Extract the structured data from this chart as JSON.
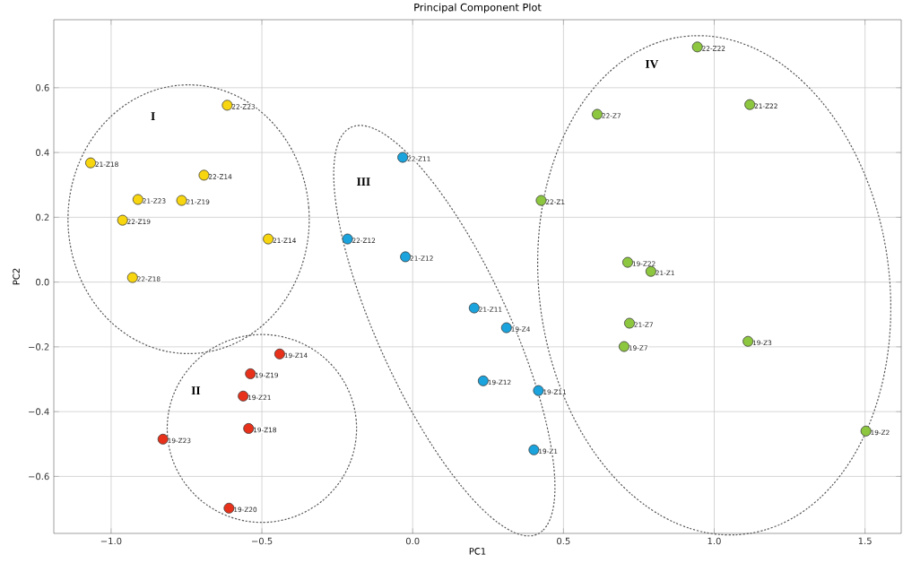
{
  "chart_data": {
    "type": "scatter",
    "title": "Principal Component Plot",
    "xlabel": "PC1",
    "ylabel": "PC2",
    "xlim": [
      -1.19,
      1.62
    ],
    "ylim": [
      -0.776,
      0.81
    ],
    "xticks": [
      {
        "value": -1.0,
        "label": "−1.0"
      },
      {
        "value": -0.5,
        "label": "−0.5"
      },
      {
        "value": 0.0,
        "label": "0.0"
      },
      {
        "value": 0.5,
        "label": "0.5"
      },
      {
        "value": 1.0,
        "label": "1.0"
      },
      {
        "value": 1.5,
        "label": "1.5"
      }
    ],
    "yticks": [
      {
        "value": -0.6,
        "label": "−0.6"
      },
      {
        "value": -0.4,
        "label": "−0.4"
      },
      {
        "value": -0.2,
        "label": "−0.2"
      },
      {
        "value": 0.0,
        "label": "0.0"
      },
      {
        "value": 0.2,
        "label": "0.2"
      },
      {
        "value": 0.4,
        "label": "0.4"
      },
      {
        "value": 0.6,
        "label": "0.6"
      }
    ],
    "grid": true,
    "marker": "circle",
    "series": [
      {
        "color": "#f7d50f",
        "x": [
          -0.615,
          -1.068,
          -0.692,
          -0.911,
          -0.766,
          -0.962,
          -0.479,
          -0.929
        ],
        "values": [
          0.546,
          0.368,
          0.33,
          0.255,
          0.252,
          0.191,
          0.133,
          0.014
        ]
      },
      {
        "color": "#e8311a",
        "x": [
          -0.441,
          -0.538,
          -0.562,
          -0.544,
          -0.828,
          -0.609
        ],
        "values": [
          -0.222,
          -0.283,
          -0.352,
          -0.452,
          -0.485,
          -0.698
        ]
      },
      {
        "color": "#1aa3dc",
        "x": [
          -0.033,
          -0.216,
          -0.024,
          0.204,
          0.311,
          0.234,
          0.417,
          0.402
        ],
        "values": [
          0.385,
          0.133,
          0.078,
          -0.08,
          -0.141,
          -0.305,
          -0.335,
          -0.518
        ]
      },
      {
        "color": "#8dc63f",
        "x": [
          0.944,
          1.118,
          0.612,
          0.426,
          0.713,
          0.79,
          0.719,
          0.701,
          1.112,
          1.503
        ],
        "values": [
          0.726,
          0.548,
          0.518,
          0.252,
          0.061,
          0.033,
          -0.127,
          -0.199,
          -0.183,
          -0.46
        ]
      }
    ],
    "annotations": [
      {
        "text": "22-Z23",
        "x": -0.615,
        "y": 0.546
      },
      {
        "text": "21-Z18",
        "x": -1.068,
        "y": 0.368
      },
      {
        "text": "22-Z14",
        "x": -0.692,
        "y": 0.33
      },
      {
        "text": "21-Z23",
        "x": -0.911,
        "y": 0.255
      },
      {
        "text": "21-Z19",
        "x": -0.766,
        "y": 0.252
      },
      {
        "text": "22-Z19",
        "x": -0.962,
        "y": 0.191
      },
      {
        "text": "21-Z14",
        "x": -0.479,
        "y": 0.133
      },
      {
        "text": "22-Z18",
        "x": -0.929,
        "y": 0.014
      },
      {
        "text": "19-Z14",
        "x": -0.441,
        "y": -0.222
      },
      {
        "text": "19-Z19",
        "x": -0.538,
        "y": -0.283
      },
      {
        "text": "19-Z21",
        "x": -0.562,
        "y": -0.352
      },
      {
        "text": "19-Z18",
        "x": -0.544,
        "y": -0.452
      },
      {
        "text": "19-Z23",
        "x": -0.828,
        "y": -0.485
      },
      {
        "text": "19-Z20",
        "x": -0.609,
        "y": -0.698
      },
      {
        "text": "22-Z11",
        "x": -0.033,
        "y": 0.385
      },
      {
        "text": "22-Z12",
        "x": -0.216,
        "y": 0.133
      },
      {
        "text": "21-Z12",
        "x": -0.024,
        "y": 0.078
      },
      {
        "text": "21-Z11",
        "x": 0.204,
        "y": -0.08
      },
      {
        "text": "19-Z4",
        "x": 0.311,
        "y": -0.141
      },
      {
        "text": "19-Z12",
        "x": 0.234,
        "y": -0.305
      },
      {
        "text": "19-Z11",
        "x": 0.417,
        "y": -0.335
      },
      {
        "text": "19-Z1",
        "x": 0.402,
        "y": -0.518
      },
      {
        "text": "22-Z22",
        "x": 0.944,
        "y": 0.726
      },
      {
        "text": "21-Z22",
        "x": 1.118,
        "y": 0.548
      },
      {
        "text": "22-Z7",
        "x": 0.612,
        "y": 0.518
      },
      {
        "text": "22-Z1",
        "x": 0.426,
        "y": 0.252
      },
      {
        "text": "19-Z22",
        "x": 0.713,
        "y": 0.061
      },
      {
        "text": "21-Z1",
        "x": 0.79,
        "y": 0.033
      },
      {
        "text": "21-Z7",
        "x": 0.719,
        "y": -0.127
      },
      {
        "text": "19-Z7",
        "x": 0.701,
        "y": -0.199
      },
      {
        "text": "19-Z3",
        "x": 1.112,
        "y": -0.183
      },
      {
        "text": "19-Z2",
        "x": 1.503,
        "y": -0.46
      },
      "I",
      "II",
      "III",
      "IV"
    ]
  }
}
